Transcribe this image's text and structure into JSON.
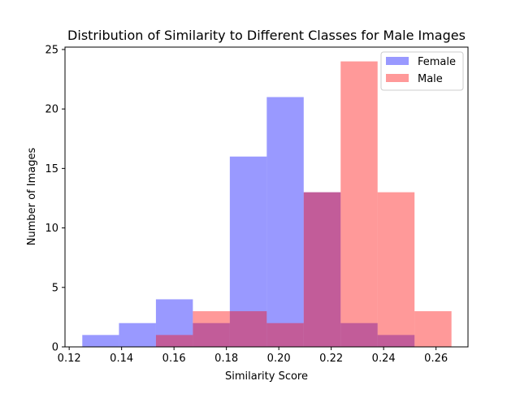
{
  "chart_data": {
    "type": "histogram",
    "title": "Distribution of Similarity to Different Classes for Male Images",
    "xlabel": "Similarity Score",
    "ylabel": "Number of Images",
    "xlim": [
      0.1184,
      0.2722
    ],
    "ylim": [
      0,
      25.2
    ],
    "xticks": [
      {
        "value": 0.12,
        "label": "0.12"
      },
      {
        "value": 0.14,
        "label": "0.14"
      },
      {
        "value": 0.16,
        "label": "0.16"
      },
      {
        "value": 0.18,
        "label": "0.18"
      },
      {
        "value": 0.2,
        "label": "0.20"
      },
      {
        "value": 0.22,
        "label": "0.22"
      },
      {
        "value": 0.24,
        "label": "0.24"
      },
      {
        "value": 0.26,
        "label": "0.26"
      }
    ],
    "yticks": [
      {
        "value": 0,
        "label": "0"
      },
      {
        "value": 5,
        "label": "5"
      },
      {
        "value": 10,
        "label": "10"
      },
      {
        "value": 15,
        "label": "15"
      },
      {
        "value": 20,
        "label": "20"
      },
      {
        "value": 25,
        "label": "25"
      }
    ],
    "grid": false,
    "legend_position": "top-right",
    "series": [
      {
        "name": "Female",
        "color": "#0000ff",
        "alpha": 0.4,
        "bins": [
          {
            "x0": 0.125,
            "x1": 0.139,
            "count": 1
          },
          {
            "x0": 0.139,
            "x1": 0.1531,
            "count": 2
          },
          {
            "x0": 0.1531,
            "x1": 0.1672,
            "count": 4
          },
          {
            "x0": 0.1672,
            "x1": 0.1813,
            "count": 2
          },
          {
            "x0": 0.1813,
            "x1": 0.1954,
            "count": 16
          },
          {
            "x0": 0.1954,
            "x1": 0.2095,
            "count": 21
          },
          {
            "x0": 0.2095,
            "x1": 0.2236,
            "count": 13
          },
          {
            "x0": 0.2236,
            "x1": 0.2377,
            "count": 2
          },
          {
            "x0": 0.2377,
            "x1": 0.2518,
            "count": 1
          }
        ]
      },
      {
        "name": "Male",
        "color": "#ff0000",
        "alpha": 0.4,
        "bins": [
          {
            "x0": 0.1531,
            "x1": 0.1672,
            "count": 1
          },
          {
            "x0": 0.1672,
            "x1": 0.1813,
            "count": 3
          },
          {
            "x0": 0.1813,
            "x1": 0.1954,
            "count": 3
          },
          {
            "x0": 0.1954,
            "x1": 0.2095,
            "count": 2
          },
          {
            "x0": 0.2095,
            "x1": 0.2236,
            "count": 13
          },
          {
            "x0": 0.2236,
            "x1": 0.2377,
            "count": 24
          },
          {
            "x0": 0.2377,
            "x1": 0.2518,
            "count": 13
          },
          {
            "x0": 0.2518,
            "x1": 0.2659,
            "count": 3
          }
        ]
      }
    ]
  }
}
